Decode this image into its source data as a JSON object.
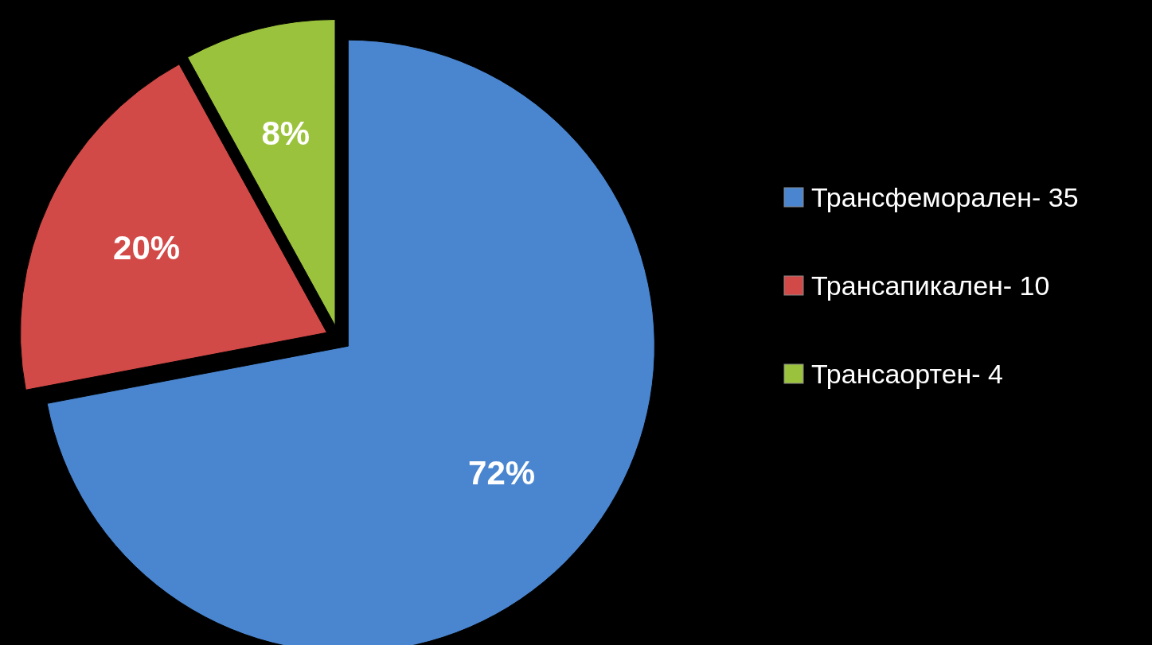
{
  "chart_data": {
    "type": "pie",
    "categories": [
      "Трансфеморален- 35",
      "Трансапикален- 10",
      "Трансаортен- 4"
    ],
    "values": [
      72,
      20,
      8
    ],
    "colors": [
      "#4a86d0",
      "#d24a48",
      "#9bc23c"
    ],
    "value_labels": [
      "72%",
      "20%",
      "8%"
    ],
    "legend": "right"
  }
}
